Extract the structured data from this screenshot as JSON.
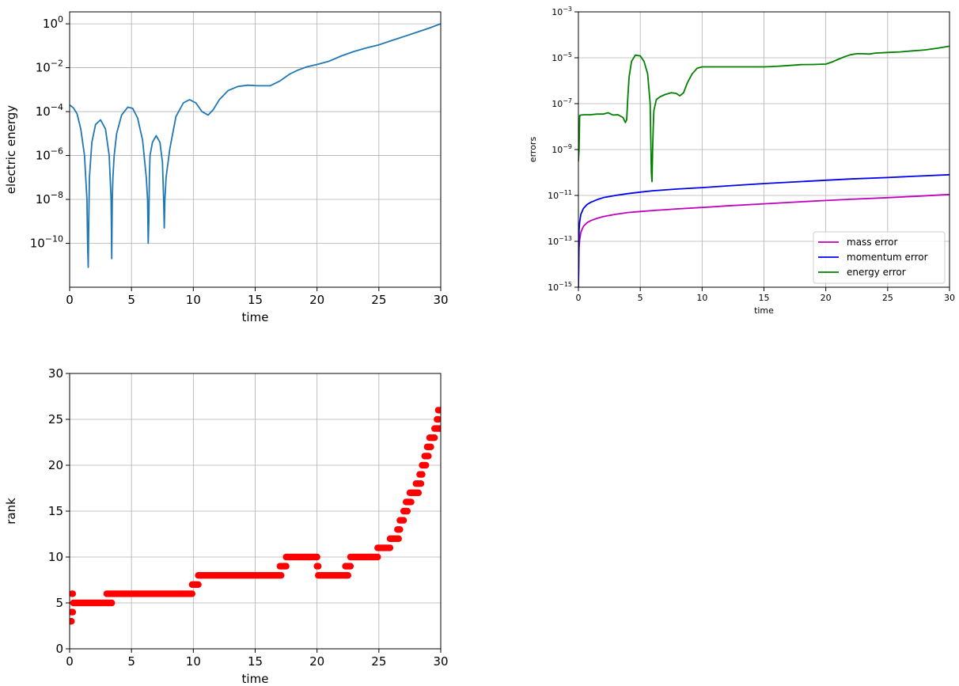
{
  "chart_data": [
    {
      "id": "electric-energy",
      "type": "line",
      "xlabel": "time",
      "ylabel": "electric energy",
      "xlim": [
        0,
        30
      ],
      "ylim": [
        1e-12,
        3.5
      ],
      "yscale": "log",
      "grid": true,
      "x_ticks": [
        "0",
        "5",
        "10",
        "15",
        "20",
        "25",
        "30"
      ],
      "y_ticks": [
        {
          "base": "10",
          "exp": "0"
        },
        {
          "base": "10",
          "exp": "−2"
        },
        {
          "base": "10",
          "exp": "−4"
        },
        {
          "base": "10",
          "exp": "−6"
        },
        {
          "base": "10",
          "exp": "−8"
        },
        {
          "base": "10",
          "exp": "−10"
        }
      ],
      "series": [
        {
          "color": "#1f77b4",
          "x": [
            0,
            0.3,
            0.6,
            0.9,
            1.2,
            1.4,
            1.45,
            1.5,
            1.55,
            1.6,
            1.8,
            2.1,
            2.5,
            2.9,
            3.2,
            3.35,
            3.4,
            3.45,
            3.5,
            3.6,
            3.8,
            4.2,
            4.7,
            5.1,
            5.5,
            5.9,
            6.2,
            6.3,
            6.35,
            6.4,
            6.45,
            6.5,
            6.7,
            7.0,
            7.3,
            7.5,
            7.6,
            7.65,
            7.7,
            7.8,
            8.1,
            8.6,
            9.2,
            9.7,
            10.2,
            10.7,
            11.2,
            11.6,
            12.1,
            12.8,
            13.6,
            14.4,
            15.2,
            16.2,
            17.0,
            17.8,
            18.5,
            19.2,
            20.0,
            21.0,
            22.0,
            23.0,
            24.0,
            25.0,
            26.0,
            27.0,
            28.0,
            29.0,
            30.0
          ],
          "y": [
            0.0002,
            0.00015,
            8e-05,
            1.6e-05,
            1e-06,
            1e-08,
            1e-10,
            8e-12,
            1e-09,
            1e-07,
            4e-06,
            2.6e-05,
            4.2e-05,
            1.6e-05,
            1e-06,
            1e-08,
            2e-11,
            1e-08,
            1e-07,
            1e-06,
            1e-05,
            7e-05,
            0.00016,
            0.00014,
            5e-05,
            5e-06,
            1e-07,
            1e-08,
            1e-10,
            1e-09,
            1e-07,
            1e-06,
            4e-06,
            8e-06,
            4e-06,
            5e-07,
            1e-08,
            5e-10,
            1e-08,
            1e-07,
            2e-06,
            6e-05,
            0.00025,
            0.00035,
            0.00025,
            0.0001,
            7e-05,
            0.00012,
            0.00035,
            0.0009,
            0.0014,
            0.0016,
            0.0015,
            0.0015,
            0.0025,
            0.0052,
            0.008,
            0.011,
            0.014,
            0.02,
            0.035,
            0.055,
            0.08,
            0.11,
            0.17,
            0.26,
            0.4,
            0.62,
            1.0
          ]
        }
      ]
    },
    {
      "id": "errors",
      "type": "line",
      "xlabel": "time",
      "ylabel": "errors",
      "xlim": [
        0,
        30
      ],
      "ylim": [
        1e-15,
        0.001
      ],
      "yscale": "log",
      "grid": true,
      "legend": "lower-right",
      "x_ticks": [
        "0",
        "5",
        "10",
        "15",
        "20",
        "25",
        "30"
      ],
      "y_ticks": [
        {
          "base": "10",
          "exp": "−3"
        },
        {
          "base": "10",
          "exp": "−5"
        },
        {
          "base": "10",
          "exp": "−7"
        },
        {
          "base": "10",
          "exp": "−9"
        },
        {
          "base": "10",
          "exp": "−11"
        },
        {
          "base": "10",
          "exp": "−13"
        },
        {
          "base": "10",
          "exp": "−15"
        }
      ],
      "series": [
        {
          "name": "mass error",
          "color": "#bf00bf",
          "x": [
            0,
            0.05,
            0.1,
            0.2,
            0.4,
            0.7,
            1,
            1.5,
            2,
            3,
            4,
            5,
            6,
            8,
            10,
            12,
            15,
            18,
            20,
            22,
            25,
            27,
            30
          ],
          "y": [
            1e-15,
            5e-14,
            1.2e-13,
            2.5e-13,
            4.5e-13,
            6.5e-13,
            8e-13,
            1e-12,
            1.2e-12,
            1.5e-12,
            1.8e-12,
            2e-12,
            2.2e-12,
            2.6e-12,
            3e-12,
            3.5e-12,
            4.3e-12,
            5.3e-12,
            6e-12,
            6.8e-12,
            8e-12,
            9e-12,
            1.1e-11
          ]
        },
        {
          "name": "momentum error",
          "color": "#0000ee",
          "x": [
            0,
            0.05,
            0.1,
            0.2,
            0.4,
            0.7,
            1,
            1.5,
            2,
            3,
            4,
            5,
            6,
            8,
            10,
            12,
            15,
            18,
            20,
            22,
            25,
            27,
            30
          ],
          "y": [
            1e-15,
            3e-13,
            7e-13,
            1.5e-12,
            2.7e-12,
            4e-12,
            5e-12,
            6.5e-12,
            8e-12,
            1e-11,
            1.2e-11,
            1.4e-11,
            1.6e-11,
            1.9e-11,
            2.2e-11,
            2.6e-11,
            3.3e-11,
            4e-11,
            4.6e-11,
            5.2e-11,
            6e-11,
            6.8e-11,
            8e-11
          ]
        },
        {
          "name": "energy error",
          "color": "#008000",
          "x": [
            0,
            0.05,
            0.1,
            0.2,
            0.5,
            1,
            1.5,
            2,
            2.4,
            2.8,
            3.2,
            3.6,
            3.8,
            3.9,
            4.0,
            4.1,
            4.3,
            4.6,
            5.0,
            5.3,
            5.6,
            5.8,
            5.9,
            5.95,
            6.0,
            6.05,
            6.1,
            6.3,
            6.6,
            7.0,
            7.5,
            7.9,
            8.2,
            8.5,
            8.8,
            9.2,
            9.6,
            10.0,
            12,
            14,
            15,
            16,
            17,
            18,
            19,
            20,
            20.5,
            21,
            21.5,
            22,
            22.5,
            23,
            23.5,
            24,
            25,
            26,
            27,
            28,
            29,
            30
          ],
          "y": [
            3e-10,
            1e-09,
            3e-08,
            3.2e-08,
            3.3e-08,
            3.3e-08,
            3.5e-08,
            3.5e-08,
            4e-08,
            3.2e-08,
            3.3e-08,
            2.5e-08,
            1.5e-08,
            2e-08,
            2e-07,
            1.5e-06,
            7e-06,
            1.3e-05,
            1.2e-05,
            7e-06,
            2e-06,
            1e-07,
            1e-10,
            4e-11,
            1e-09,
            1e-08,
            5e-08,
            1.5e-07,
            2e-07,
            2.5e-07,
            3e-07,
            2.8e-07,
            2.2e-07,
            3e-07,
            8e-07,
            2e-06,
            3.5e-06,
            4e-06,
            4e-06,
            4e-06,
            4e-06,
            4.2e-06,
            4.6e-06,
            5e-06,
            5.1e-06,
            5.3e-06,
            6.5e-06,
            8.5e-06,
            1.1e-05,
            1.35e-05,
            1.5e-05,
            1.5e-05,
            1.45e-05,
            1.6e-05,
            1.7e-05,
            1.8e-05,
            2e-05,
            2.2e-05,
            2.6e-05,
            3.2e-05
          ]
        }
      ]
    },
    {
      "id": "rank",
      "type": "scatter",
      "xlabel": "time",
      "ylabel": "rank",
      "xlim": [
        0,
        30
      ],
      "ylim": [
        0,
        30
      ],
      "grid": true,
      "marker_color": "#ff0000",
      "x_ticks": [
        "0",
        "5",
        "10",
        "15",
        "20",
        "25",
        "30"
      ],
      "y_ticks": [
        "0",
        "5",
        "10",
        "15",
        "20",
        "25",
        "30"
      ],
      "segments": [
        {
          "rank": 3,
          "t0": 0.1,
          "t1": 0.15
        },
        {
          "rank": 4,
          "t0": 0.15,
          "t1": 0.25
        },
        {
          "rank": 6,
          "t0": 0.2,
          "t1": 0.25
        },
        {
          "rank": 5,
          "t0": 0.3,
          "t1": 3.4
        },
        {
          "rank": 6,
          "t0": 3.0,
          "t1": 9.9
        },
        {
          "rank": 7,
          "t0": 9.9,
          "t1": 10.4
        },
        {
          "rank": 8,
          "t0": 10.4,
          "t1": 17.1
        },
        {
          "rank": 9,
          "t0": 17.0,
          "t1": 17.5
        },
        {
          "rank": 10,
          "t0": 17.5,
          "t1": 20.0
        },
        {
          "rank": 9,
          "t0": 20.0,
          "t1": 20.1
        },
        {
          "rank": 8,
          "t0": 20.1,
          "t1": 22.5
        },
        {
          "rank": 9,
          "t0": 22.3,
          "t1": 22.7
        },
        {
          "rank": 10,
          "t0": 22.7,
          "t1": 24.9
        },
        {
          "rank": 11,
          "t0": 24.9,
          "t1": 25.9
        },
        {
          "rank": 12,
          "t0": 25.9,
          "t1": 26.6
        },
        {
          "rank": 13,
          "t0": 26.5,
          "t1": 26.7
        },
        {
          "rank": 14,
          "t0": 26.7,
          "t1": 27.0
        },
        {
          "rank": 15,
          "t0": 27.0,
          "t1": 27.3
        },
        {
          "rank": 16,
          "t0": 27.2,
          "t1": 27.6
        },
        {
          "rank": 17,
          "t0": 27.5,
          "t1": 28.2
        },
        {
          "rank": 18,
          "t0": 28.0,
          "t1": 28.4
        },
        {
          "rank": 19,
          "t0": 28.3,
          "t1": 28.5
        },
        {
          "rank": 20,
          "t0": 28.5,
          "t1": 28.8
        },
        {
          "rank": 21,
          "t0": 28.7,
          "t1": 29.0
        },
        {
          "rank": 22,
          "t0": 28.9,
          "t1": 29.2
        },
        {
          "rank": 23,
          "t0": 29.1,
          "t1": 29.5
        },
        {
          "rank": 24,
          "t0": 29.5,
          "t1": 30.0
        },
        {
          "rank": 25,
          "t0": 29.7,
          "t1": 29.8
        },
        {
          "rank": 26,
          "t0": 29.8,
          "t1": 30.0
        }
      ]
    }
  ]
}
